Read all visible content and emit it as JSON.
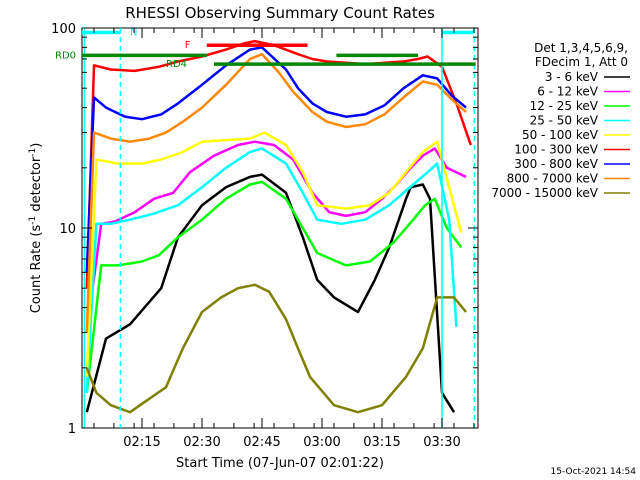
{
  "chart_data": {
    "type": "line",
    "title": "RHESSI Observing Summary Count Rates",
    "xlabel": "Start Time (07-Jun-07 02:01:22)",
    "ylabel_main": "Count Rate (s",
    "ylabel_sup1": "-1",
    "ylabel_mid": " detector",
    "ylabel_sup2": "-1",
    "ylabel_end": ")",
    "ylog": true,
    "xlim": [
      2.0,
      3.65
    ],
    "ylim": [
      1,
      100
    ],
    "x_ticks": [
      {
        "t": 2.25,
        "label": "02:15"
      },
      {
        "t": 2.5,
        "label": "02:30"
      },
      {
        "t": 2.75,
        "label": "02:45"
      },
      {
        "t": 3.0,
        "label": "03:00"
      },
      {
        "t": 3.25,
        "label": "03:15"
      },
      {
        "t": 3.5,
        "label": "03:30"
      }
    ],
    "y_ticks": [
      {
        "v": 1,
        "label": "1"
      },
      {
        "v": 10,
        "label": "10"
      },
      {
        "v": 100,
        "label": "100"
      }
    ],
    "legend_header": [
      "Det 1,3,4,5,6,9,",
      "FDecim 1, Att 0"
    ],
    "series": [
      {
        "name": "3 - 6 keV",
        "color": "#000000",
        "points": [
          [
            2.02,
            1.2
          ],
          [
            2.1,
            2.8
          ],
          [
            2.2,
            3.3
          ],
          [
            2.33,
            5.0
          ],
          [
            2.4,
            9.0
          ],
          [
            2.5,
            13.0
          ],
          [
            2.6,
            16.0
          ],
          [
            2.7,
            18.0
          ],
          [
            2.75,
            18.5
          ],
          [
            2.85,
            15.0
          ],
          [
            2.92,
            9.0
          ],
          [
            2.98,
            5.5
          ],
          [
            3.05,
            4.5
          ],
          [
            3.15,
            3.8
          ],
          [
            3.22,
            5.5
          ],
          [
            3.28,
            8.0
          ],
          [
            3.32,
            11.0
          ],
          [
            3.35,
            14.0
          ],
          [
            3.37,
            16.0
          ],
          [
            3.42,
            16.5
          ],
          [
            3.45,
            14.0
          ],
          [
            3.5,
            1.5
          ],
          [
            3.55,
            1.2
          ]
        ]
      },
      {
        "name": "6 - 12 keV",
        "color": "#ff00ff",
        "points": [
          [
            2.02,
            3.0
          ],
          [
            2.08,
            10.5
          ],
          [
            2.14,
            10.8
          ],
          [
            2.22,
            12.0
          ],
          [
            2.3,
            14.0
          ],
          [
            2.38,
            15.0
          ],
          [
            2.45,
            19.0
          ],
          [
            2.55,
            23.0
          ],
          [
            2.65,
            26.0
          ],
          [
            2.72,
            27.0
          ],
          [
            2.8,
            26.0
          ],
          [
            2.88,
            22.0
          ],
          [
            2.96,
            15.0
          ],
          [
            3.03,
            12.0
          ],
          [
            3.1,
            11.5
          ],
          [
            3.18,
            12.0
          ],
          [
            3.25,
            14.0
          ],
          [
            3.3,
            16.0
          ],
          [
            3.37,
            20.0
          ],
          [
            3.42,
            23.0
          ],
          [
            3.47,
            25.0
          ],
          [
            3.52,
            20.0
          ],
          [
            3.6,
            18.0
          ]
        ]
      },
      {
        "name": "12 - 25 keV",
        "color": "#00ff00",
        "points": [
          [
            2.02,
            1.5
          ],
          [
            2.08,
            6.5
          ],
          [
            2.15,
            6.5
          ],
          [
            2.25,
            6.8
          ],
          [
            2.32,
            7.3
          ],
          [
            2.4,
            9.0
          ],
          [
            2.5,
            11.0
          ],
          [
            2.6,
            14.0
          ],
          [
            2.7,
            16.5
          ],
          [
            2.75,
            17.0
          ],
          [
            2.85,
            14.0
          ],
          [
            2.92,
            10.0
          ],
          [
            2.98,
            7.5
          ],
          [
            3.1,
            6.5
          ],
          [
            3.2,
            6.8
          ],
          [
            3.3,
            8.5
          ],
          [
            3.38,
            11.0
          ],
          [
            3.43,
            13.0
          ],
          [
            3.47,
            14.0
          ],
          [
            3.52,
            10.0
          ],
          [
            3.58,
            8.0
          ]
        ]
      },
      {
        "name": "25 - 50 keV",
        "color": "#00ffff",
        "points": [
          [
            2.02,
            1.5
          ],
          [
            2.06,
            10.5
          ],
          [
            2.12,
            10.5
          ],
          [
            2.2,
            11.0
          ],
          [
            2.3,
            11.8
          ],
          [
            2.4,
            13.0
          ],
          [
            2.5,
            16.0
          ],
          [
            2.6,
            20.0
          ],
          [
            2.7,
            24.0
          ],
          [
            2.75,
            25.0
          ],
          [
            2.85,
            21.0
          ],
          [
            2.92,
            15.0
          ],
          [
            2.98,
            11.0
          ],
          [
            3.08,
            10.5
          ],
          [
            3.18,
            11.0
          ],
          [
            3.28,
            13.0
          ],
          [
            3.38,
            16.5
          ],
          [
            3.44,
            19.0
          ],
          [
            3.48,
            21.0
          ],
          [
            3.53,
            11.0
          ],
          [
            3.56,
            3.2
          ]
        ]
      },
      {
        "name": "50 - 100 keV",
        "color": "#ffff00",
        "points": [
          [
            2.02,
            1.8
          ],
          [
            2.06,
            22.0
          ],
          [
            2.15,
            21.0
          ],
          [
            2.25,
            21.0
          ],
          [
            2.33,
            22.0
          ],
          [
            2.42,
            24.0
          ],
          [
            2.5,
            27.0
          ],
          [
            2.6,
            27.5
          ],
          [
            2.7,
            28.0
          ],
          [
            2.76,
            30.0
          ],
          [
            2.85,
            26.0
          ],
          [
            2.92,
            19.0
          ],
          [
            2.98,
            13.0
          ],
          [
            3.1,
            12.5
          ],
          [
            3.2,
            13.0
          ],
          [
            3.28,
            15.0
          ],
          [
            3.35,
            19.0
          ],
          [
            3.42,
            24.0
          ],
          [
            3.48,
            27.0
          ],
          [
            3.53,
            16.0
          ],
          [
            3.58,
            9.5
          ]
        ]
      },
      {
        "name": "100 - 300 keV",
        "color": "#ff0000",
        "points": [
          [
            2.02,
            5.0
          ],
          [
            2.05,
            65.0
          ],
          [
            2.12,
            62.0
          ],
          [
            2.22,
            61.0
          ],
          [
            2.32,
            64.0
          ],
          [
            2.4,
            68.0
          ],
          [
            2.5,
            72.0
          ],
          [
            2.6,
            78.0
          ],
          [
            2.68,
            84.0
          ],
          [
            2.72,
            86.0
          ],
          [
            2.8,
            82.0
          ],
          [
            2.9,
            74.0
          ],
          [
            2.96,
            70.0
          ],
          [
            3.02,
            68.0
          ],
          [
            3.1,
            67.0
          ],
          [
            3.18,
            66.0
          ],
          [
            3.26,
            67.0
          ],
          [
            3.34,
            68.0
          ],
          [
            3.4,
            70.0
          ],
          [
            3.44,
            72.0
          ],
          [
            3.5,
            64.0
          ],
          [
            3.56,
            42.0
          ],
          [
            3.62,
            26.0
          ]
        ]
      },
      {
        "name": "300 - 800 keV",
        "color": "#0000ff",
        "points": [
          [
            2.02,
            6.0
          ],
          [
            2.05,
            45.0
          ],
          [
            2.1,
            40.0
          ],
          [
            2.18,
            36.0
          ],
          [
            2.25,
            35.0
          ],
          [
            2.33,
            37.0
          ],
          [
            2.4,
            42.0
          ],
          [
            2.5,
            52.0
          ],
          [
            2.6,
            65.0
          ],
          [
            2.7,
            78.0
          ],
          [
            2.75,
            80.0
          ],
          [
            2.85,
            62.0
          ],
          [
            2.9,
            50.0
          ],
          [
            2.96,
            42.0
          ],
          [
            3.02,
            38.0
          ],
          [
            3.1,
            36.0
          ],
          [
            3.18,
            37.0
          ],
          [
            3.26,
            41.0
          ],
          [
            3.34,
            50.0
          ],
          [
            3.42,
            58.0
          ],
          [
            3.48,
            56.0
          ],
          [
            3.54,
            46.0
          ],
          [
            3.6,
            40.0
          ]
        ]
      },
      {
        "name": "800 - 7000 keV",
        "color": "#ff8800",
        "points": [
          [
            2.02,
            3.0
          ],
          [
            2.05,
            30.0
          ],
          [
            2.12,
            28.0
          ],
          [
            2.2,
            27.0
          ],
          [
            2.28,
            28.0
          ],
          [
            2.35,
            30.0
          ],
          [
            2.42,
            34.0
          ],
          [
            2.5,
            40.0
          ],
          [
            2.6,
            52.0
          ],
          [
            2.7,
            70.0
          ],
          [
            2.75,
            74.0
          ],
          [
            2.82,
            60.0
          ],
          [
            2.88,
            48.0
          ],
          [
            2.96,
            38.0
          ],
          [
            3.02,
            34.0
          ],
          [
            3.1,
            32.0
          ],
          [
            3.18,
            33.0
          ],
          [
            3.26,
            37.0
          ],
          [
            3.34,
            45.0
          ],
          [
            3.42,
            54.0
          ],
          [
            3.48,
            52.0
          ],
          [
            3.54,
            44.0
          ],
          [
            3.6,
            38.0
          ]
        ]
      },
      {
        "name": "7000 - 15000 keV",
        "color": "#808000",
        "points": [
          [
            2.02,
            2.0
          ],
          [
            2.06,
            1.5
          ],
          [
            2.12,
            1.3
          ],
          [
            2.2,
            1.2
          ],
          [
            2.28,
            1.4
          ],
          [
            2.35,
            1.6
          ],
          [
            2.42,
            2.5
          ],
          [
            2.5,
            3.8
          ],
          [
            2.58,
            4.5
          ],
          [
            2.65,
            5.0
          ],
          [
            2.72,
            5.2
          ],
          [
            2.78,
            4.8
          ],
          [
            2.85,
            3.5
          ],
          [
            2.9,
            2.5
          ],
          [
            2.95,
            1.8
          ],
          [
            3.05,
            1.3
          ],
          [
            3.15,
            1.2
          ],
          [
            3.25,
            1.3
          ],
          [
            3.35,
            1.8
          ],
          [
            3.42,
            2.5
          ],
          [
            3.48,
            4.5
          ],
          [
            3.55,
            4.5
          ],
          [
            3.6,
            3.8
          ]
        ]
      }
    ],
    "overlays": [
      {
        "label": "N",
        "color": "#00ffff",
        "y": 95,
        "x_start": 2.0,
        "x_end": 2.16
      },
      {
        "label": "",
        "color": "#00ffff",
        "y": 95,
        "x_start": 3.5,
        "x_end": 3.63
      },
      {
        "label": "F",
        "color": "#ff0000",
        "y": 82,
        "x_start": 2.52,
        "x_end": 2.94
      },
      {
        "label": "RD0",
        "color": "#008800",
        "y": 73,
        "x_start": 2.0,
        "x_end": 2.52
      },
      {
        "label": "",
        "color": "#008800",
        "y": 73,
        "x_start": 3.06,
        "x_end": 3.4
      },
      {
        "label": "RD4",
        "color": "#008800",
        "y": 66,
        "x_start": 2.55,
        "x_end": 3.64
      }
    ],
    "v_markers": [
      {
        "t": 2.01,
        "color": "#00ffff",
        "style": "solid"
      },
      {
        "t": 2.16,
        "color": "#00ffff",
        "style": "dashed"
      },
      {
        "t": 3.5,
        "color": "#00ffff",
        "style": "solid"
      },
      {
        "t": 3.635,
        "color": "#00ffff",
        "style": "dashed"
      }
    ],
    "footer_date": "15-Oct-2021 14:54"
  }
}
